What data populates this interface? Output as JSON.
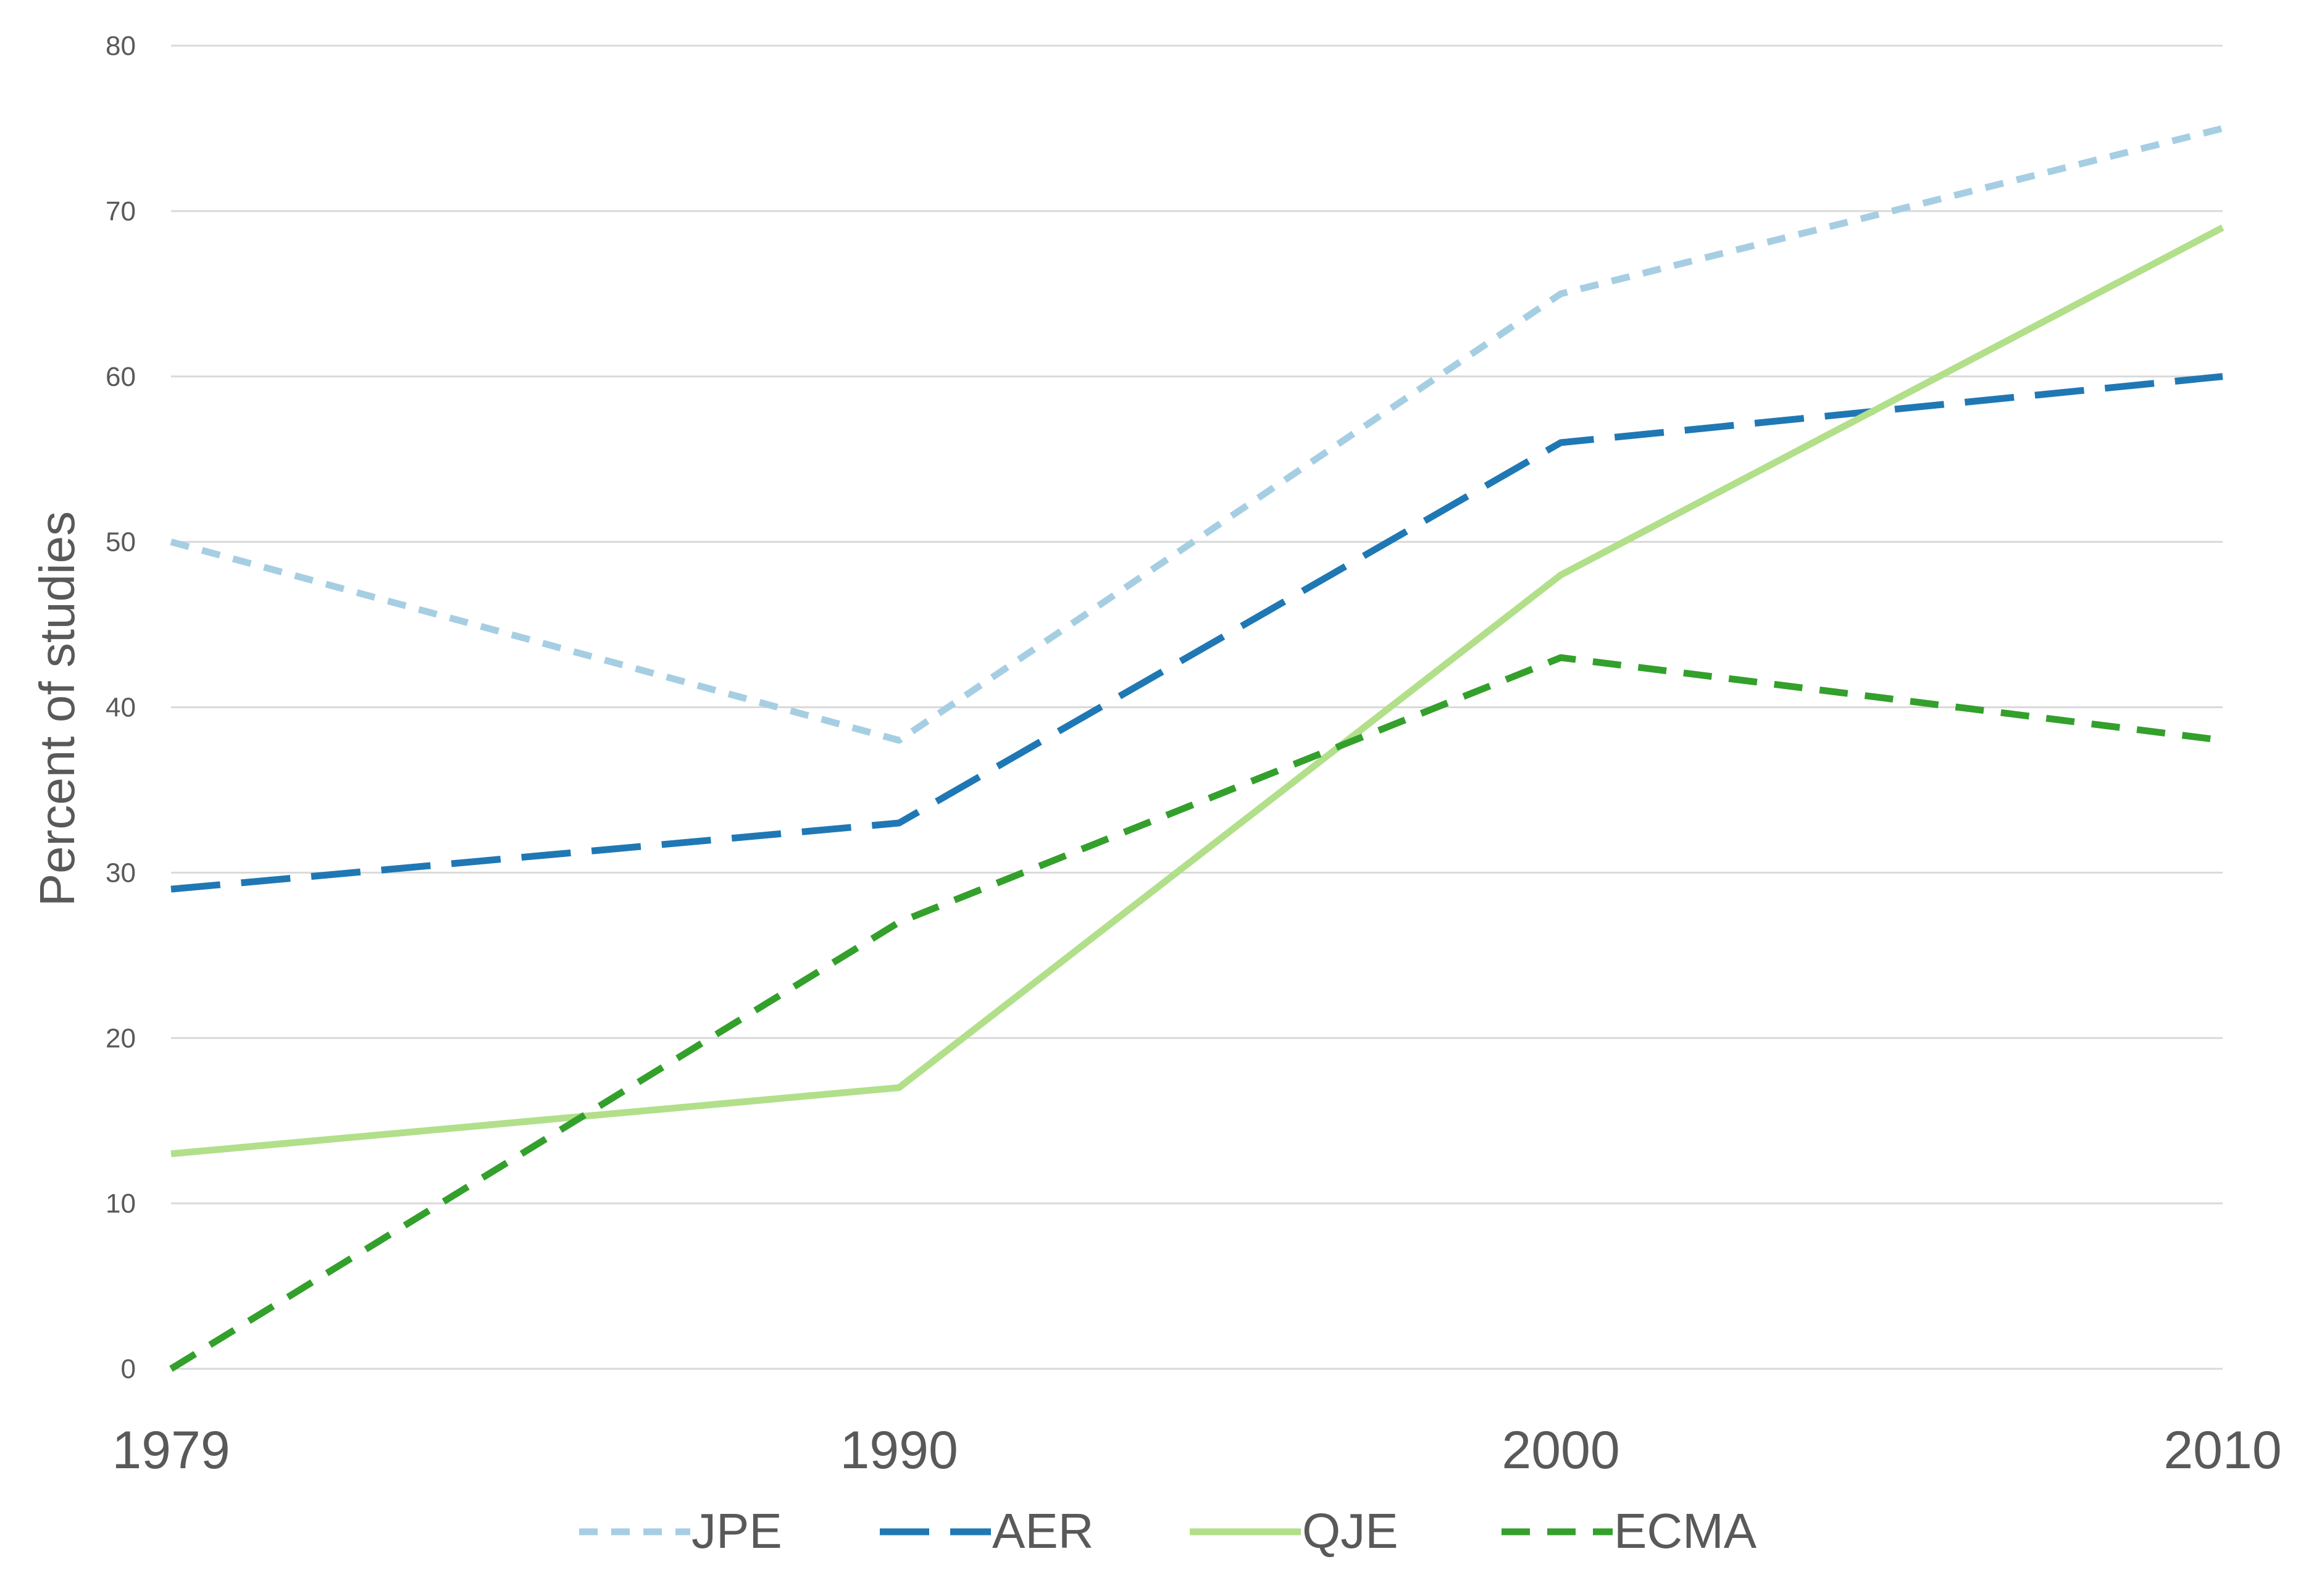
{
  "chart_data": {
    "type": "line",
    "title": "",
    "xlabel": "",
    "ylabel": "Percent of studies",
    "x": [
      1979,
      1990,
      2000,
      2010
    ],
    "xtick_labels": [
      "1979",
      "1990",
      "2000",
      "2010"
    ],
    "ylim": [
      0,
      80
    ],
    "yticks": [
      0,
      10,
      20,
      30,
      40,
      50,
      60,
      70,
      80
    ],
    "ytick_labels": [
      "0",
      "10",
      "20",
      "30",
      "40",
      "50",
      "60",
      "70",
      "80"
    ],
    "grid": true,
    "legend_position": "bottom",
    "series": [
      {
        "name": "JPE",
        "values": [
          50,
          38,
          65,
          75
        ],
        "color": "#a6cee3",
        "style": "dotted-dash"
      },
      {
        "name": "AER",
        "values": [
          29,
          33,
          56,
          60
        ],
        "color": "#1f78b4",
        "style": "long-dash"
      },
      {
        "name": "QJE",
        "values": [
          13,
          17,
          48,
          69
        ],
        "color": "#b2df8a",
        "style": "solid"
      },
      {
        "name": "ECMA",
        "values": [
          0,
          27,
          43,
          38
        ],
        "color": "#33a02c",
        "style": "dash"
      }
    ]
  }
}
